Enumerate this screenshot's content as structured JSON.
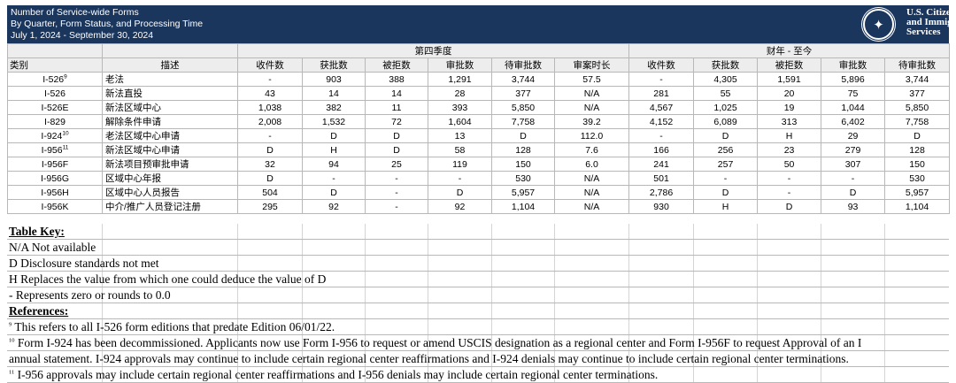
{
  "header": {
    "title_lines": [
      "Number of Service-wide Forms",
      "By Quarter, Form Status, and Processing Time",
      "July 1, 2024 - September 30, 2024"
    ],
    "agency_lines": [
      "U.S. Citizenship",
      "and Immigration",
      "Services"
    ],
    "bg_color": "#1b365d",
    "logo_icon": "dhs-seal-icon"
  },
  "table": {
    "group_headers": {
      "q4": "第四季度",
      "fytd": "财年 - 至今"
    },
    "col_category": "类别",
    "col_description": "描述",
    "metric_headers": [
      "收件数",
      "获批数",
      "被拒数",
      "审批数",
      "待审批数",
      "审案时长",
      "收件数",
      "获批数",
      "被拒数",
      "审批数",
      "待审批数"
    ],
    "rows": [
      {
        "category": "I-526",
        "sup": "9",
        "description": "老法",
        "values": [
          "-",
          "903",
          "388",
          "1,291",
          "3,744",
          "57.5",
          "-",
          "4,305",
          "1,591",
          "5,896",
          "3,744"
        ]
      },
      {
        "category": "I-526",
        "sup": "",
        "description": "新法直投",
        "values": [
          "43",
          "14",
          "14",
          "28",
          "377",
          "N/A",
          "281",
          "55",
          "20",
          "75",
          "377"
        ]
      },
      {
        "category": "I-526E",
        "sup": "",
        "description": "新法区域中心",
        "values": [
          "1,038",
          "382",
          "11",
          "393",
          "5,850",
          "N/A",
          "4,567",
          "1,025",
          "19",
          "1,044",
          "5,850"
        ]
      },
      {
        "category": "I-829",
        "sup": "",
        "description": "解除条件申请",
        "values": [
          "2,008",
          "1,532",
          "72",
          "1,604",
          "7,758",
          "39.2",
          "4,152",
          "6,089",
          "313",
          "6,402",
          "7,758"
        ]
      },
      {
        "category": "I-924",
        "sup": "10",
        "description": "老法区域中心申请",
        "values": [
          "-",
          "D",
          "D",
          "13",
          "D",
          "112.0",
          "-",
          "D",
          "H",
          "29",
          "D"
        ]
      },
      {
        "category": "I-956",
        "sup": "11",
        "description": "新法区域中心申请",
        "values": [
          "D",
          "H",
          "D",
          "58",
          "128",
          "7.6",
          "166",
          "256",
          "23",
          "279",
          "128"
        ]
      },
      {
        "category": "I-956F",
        "sup": "",
        "description": "新法项目预审批申请",
        "values": [
          "32",
          "94",
          "25",
          "119",
          "150",
          "6.0",
          "241",
          "257",
          "50",
          "307",
          "150"
        ]
      },
      {
        "category": "I-956G",
        "sup": "",
        "description": "区域中心年报",
        "values": [
          "D",
          "-",
          "-",
          "-",
          "530",
          "N/A",
          "501",
          "-",
          "-",
          "-",
          "530"
        ]
      },
      {
        "category": "I-956H",
        "sup": "",
        "description": "区域中心人员报告",
        "values": [
          "504",
          "D",
          "-",
          "D",
          "5,957",
          "N/A",
          "2,786",
          "D",
          "-",
          "D",
          "5,957"
        ]
      },
      {
        "category": "I-956K",
        "sup": "",
        "description": "中介/推广人员登记注册",
        "values": [
          "295",
          "92",
          "-",
          "92",
          "1,104",
          "N/A",
          "930",
          "H",
          "D",
          "93",
          "1,104"
        ]
      }
    ]
  },
  "notes": {
    "key_title": "Table Key:",
    "key_items": [
      "N/A  Not available",
      "D  Disclosure standards not met",
      "H Replaces the value from which one could deduce the value of D",
      "- Represents zero or rounds to 0.0"
    ],
    "ref_title": "References:",
    "references": [
      {
        "sup": "9",
        "text": " This refers to all I-526 form editions that predate Edition 06/01/22."
      },
      {
        "sup": "10",
        "text": " Form I-924 has been decommissioned. Applicants now use Form I-956 to request or amend USCIS designation as a regional center and Form I-956F to request Approval of an I"
      },
      {
        "sup": "",
        "text": "annual statement. I-924 approvals may continue to include certain regional center reaffirmations and I-924 denials may continue to include certain regional center terminations."
      },
      {
        "sup": "11",
        "text": " I-956 approvals may  include certain regional center reaffirmations and I-956 denials may include certain regional center terminations."
      }
    ]
  }
}
